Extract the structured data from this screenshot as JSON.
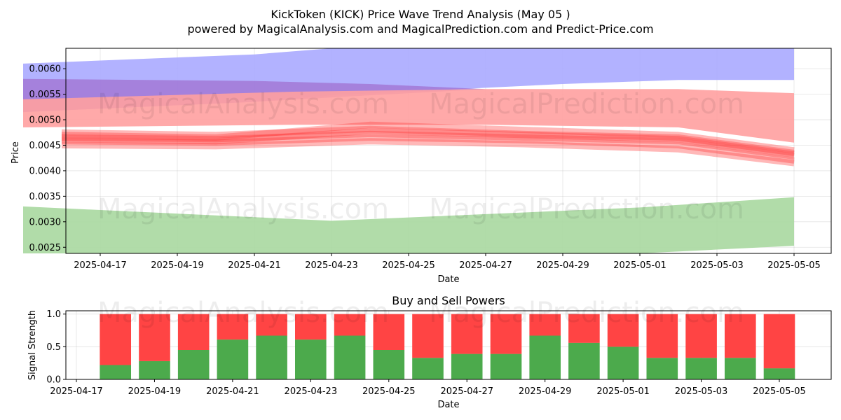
{
  "title_line1": "KickToken (KICK) Price Wave Trend Analysis (May 05 )",
  "title_line2": "powered by MagicalAnalysis.com and MagicalPrediction.com and Predict-Price.com",
  "watermarks": [
    "MagicalAnalysis.com",
    "MagicalPrediction.com"
  ],
  "colors": {
    "blue": "#aaaaff",
    "purple": "#a070d0",
    "pink": "#ffa0a0",
    "red": "#ff3333",
    "green": "#a8d8a0",
    "buy": "#4caa4c",
    "sell": "#ff4444"
  },
  "chart_data": [
    {
      "type": "area",
      "xlabel": "Date",
      "ylabel": "Price",
      "ylim": [
        0.00238,
        0.0064
      ],
      "yticks": [
        "0.0025",
        "0.0030",
        "0.0035",
        "0.0040",
        "0.0045",
        "0.0050",
        "0.0055",
        "0.0060"
      ],
      "xticks": [
        "2025-04-17",
        "2025-04-19",
        "2025-04-21",
        "2025-04-23",
        "2025-04-25",
        "2025-04-27",
        "2025-04-29",
        "2025-05-01",
        "2025-05-03",
        "2025-05-05"
      ],
      "bands": [
        {
          "color": "blue",
          "x": [
            "2025-04-15",
            "2025-04-21",
            "2025-04-23",
            "2025-04-29",
            "2025-05-02",
            "2025-05-05"
          ],
          "upper": [
            0.0061,
            0.00628,
            0.0064,
            0.0064,
            0.0064,
            0.0064
          ],
          "lower": [
            0.00515,
            0.00535,
            0.00548,
            0.0057,
            0.00578,
            0.00578
          ]
        },
        {
          "color": "purple",
          "x": [
            "2025-04-15",
            "2025-04-21",
            "2025-04-24",
            "2025-04-27"
          ],
          "upper": [
            0.0058,
            0.00576,
            0.0057,
            0.0056
          ],
          "lower": [
            0.00515,
            0.00535,
            0.00548,
            0.0056
          ]
        },
        {
          "color": "pink",
          "x": [
            "2025-04-15",
            "2025-04-22",
            "2025-04-27",
            "2025-05-02",
            "2025-05-05"
          ],
          "upper": [
            0.0054,
            0.00555,
            0.0056,
            0.0056,
            0.00552
          ],
          "lower": [
            0.00485,
            0.0049,
            0.0049,
            0.00485,
            0.00455
          ]
        },
        {
          "color": "green",
          "x": [
            "2025-04-15",
            "2025-04-23",
            "2025-05-01",
            "2025-05-05"
          ],
          "upper": [
            0.0033,
            0.00302,
            0.00328,
            0.00348
          ],
          "lower": [
            0.00238,
            0.0022,
            0.00232,
            0.00253
          ]
        }
      ],
      "red_lines": [
        {
          "x": [
            "2025-04-16",
            "2025-04-20",
            "2025-04-24",
            "2025-04-28",
            "2025-05-02",
            "2025-05-05"
          ],
          "y": [
            0.00475,
            0.0047,
            0.00482,
            0.00472,
            0.00465,
            0.00435
          ]
        },
        {
          "x": [
            "2025-04-16",
            "2025-04-20",
            "2025-04-24",
            "2025-04-28",
            "2025-05-02",
            "2025-05-05"
          ],
          "y": [
            0.00465,
            0.00462,
            0.00472,
            0.00465,
            0.00458,
            0.00428
          ]
        },
        {
          "x": [
            "2025-04-16",
            "2025-04-20",
            "2025-04-24",
            "2025-04-28",
            "2025-05-02",
            "2025-05-05"
          ],
          "y": [
            0.00458,
            0.00455,
            0.00465,
            0.0046,
            0.0045,
            0.0042
          ]
        },
        {
          "x": [
            "2025-04-16",
            "2025-04-20",
            "2025-04-24",
            "2025-04-28",
            "2025-05-02",
            "2025-05-05"
          ],
          "y": [
            0.0045,
            0.00448,
            0.00458,
            0.00452,
            0.00442,
            0.00415
          ]
        },
        {
          "x": [
            "2025-04-16",
            "2025-04-20",
            "2025-04-24",
            "2025-04-28",
            "2025-05-02",
            "2025-05-05"
          ],
          "y": [
            0.0047,
            0.00465,
            0.0049,
            0.0048,
            0.0047,
            0.0044
          ]
        },
        {
          "x": [
            "2025-04-16",
            "2025-04-20",
            "2025-04-24",
            "2025-04-28",
            "2025-05-02",
            "2025-05-05"
          ],
          "y": [
            0.00462,
            0.00458,
            0.00478,
            0.0047,
            0.00462,
            0.00432
          ]
        }
      ]
    },
    {
      "type": "bar",
      "title": "Buy and Sell Powers",
      "xlabel": "Date",
      "ylabel": "Signal Strength",
      "ylim": [
        0,
        1.05
      ],
      "yticks": [
        "0.0",
        "0.5",
        "1.0"
      ],
      "xticks": [
        "2025-04-17",
        "2025-04-19",
        "2025-04-21",
        "2025-04-23",
        "2025-04-25",
        "2025-04-27",
        "2025-04-29",
        "2025-05-01",
        "2025-05-03",
        "2025-05-05"
      ],
      "categories": [
        "2025-04-18",
        "2025-04-19",
        "2025-04-20",
        "2025-04-21",
        "2025-04-22",
        "2025-04-23",
        "2025-04-24",
        "2025-04-25",
        "2025-04-26",
        "2025-04-27",
        "2025-04-28",
        "2025-04-29",
        "2025-04-30",
        "2025-05-01",
        "2025-05-02",
        "2025-05-03",
        "2025-05-04",
        "2025-05-05"
      ],
      "series": [
        {
          "name": "Buy",
          "values": [
            0.22,
            0.28,
            0.45,
            0.61,
            0.67,
            0.61,
            0.67,
            0.45,
            0.33,
            0.39,
            0.39,
            0.67,
            0.56,
            0.5,
            0.33,
            0.33,
            0.33,
            0.17
          ]
        },
        {
          "name": "Sell",
          "values": [
            0.78,
            0.72,
            0.55,
            0.39,
            0.33,
            0.39,
            0.33,
            0.55,
            0.67,
            0.61,
            0.61,
            0.33,
            0.44,
            0.5,
            0.67,
            0.67,
            0.67,
            0.83
          ]
        }
      ]
    }
  ]
}
